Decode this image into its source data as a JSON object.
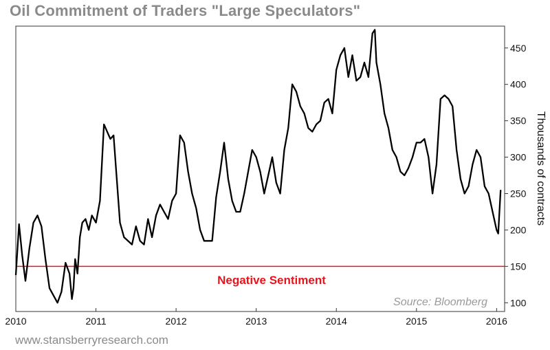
{
  "chart_data": {
    "type": "line",
    "title": "Oil Commitment of Traders \"Large Speculators\"",
    "ylabel": "Thousands of contracts",
    "xlabel": "",
    "xlim": [
      2010,
      2016.1
    ],
    "ylim": [
      88,
      480
    ],
    "x_ticks": [
      "2010",
      "2011",
      "2012",
      "2013",
      "2014",
      "2015",
      "2016"
    ],
    "y_ticks": [
      100,
      150,
      200,
      250,
      300,
      350,
      400,
      450
    ],
    "grid": false,
    "y_axis_side": "right",
    "series": [
      {
        "color": "#000000",
        "x": [
          2010.0,
          2010.04,
          2010.08,
          2010.12,
          2010.17,
          2010.22,
          2010.27,
          2010.32,
          2010.37,
          2010.42,
          2010.47,
          2010.52,
          2010.57,
          2010.62,
          2010.67,
          2010.7,
          2010.72,
          2010.74,
          2010.77,
          2010.8,
          2010.83,
          2010.87,
          2010.91,
          2010.95,
          2011.0,
          2011.05,
          2011.1,
          2011.16,
          2011.18,
          2011.22,
          2011.3,
          2011.35,
          2011.45,
          2011.5,
          2011.55,
          2011.6,
          2011.65,
          2011.7,
          2011.75,
          2011.8,
          2011.85,
          2011.9,
          2011.95,
          2012.0,
          2012.05,
          2012.1,
          2012.15,
          2012.2,
          2012.25,
          2012.3,
          2012.35,
          2012.45,
          2012.5,
          2012.55,
          2012.6,
          2012.65,
          2012.7,
          2012.75,
          2012.8,
          2012.85,
          2012.9,
          2012.95,
          2013.0,
          2013.05,
          2013.1,
          2013.15,
          2013.2,
          2013.25,
          2013.3,
          2013.35,
          2013.4,
          2013.45,
          2013.5,
          2013.55,
          2013.6,
          2013.65,
          2013.7,
          2013.75,
          2013.8,
          2013.85,
          2013.9,
          2013.95,
          2014.0,
          2014.05,
          2014.1,
          2014.15,
          2014.2,
          2014.25,
          2014.3,
          2014.35,
          2014.4,
          2014.45,
          2014.48,
          2014.5,
          2014.55,
          2014.6,
          2014.65,
          2014.7,
          2014.75,
          2014.8,
          2014.85,
          2014.9,
          2014.95,
          2015.0,
          2015.05,
          2015.1,
          2015.15,
          2015.2,
          2015.25,
          2015.3,
          2015.35,
          2015.4,
          2015.45,
          2015.5,
          2015.55,
          2015.6,
          2015.65,
          2015.7,
          2015.75,
          2015.8,
          2015.85,
          2015.9,
          2015.95,
          2016.0,
          2016.02,
          2016.05
        ],
        "y": [
          138,
          208,
          165,
          130,
          175,
          210,
          220,
          205,
          160,
          120,
          110,
          100,
          115,
          155,
          140,
          105,
          120,
          160,
          140,
          190,
          210,
          215,
          200,
          220,
          210,
          240,
          345,
          330,
          325,
          330,
          210,
          190,
          180,
          205,
          185,
          180,
          215,
          190,
          220,
          235,
          225,
          215,
          240,
          250,
          330,
          320,
          280,
          250,
          230,
          200,
          185,
          185,
          245,
          280,
          320,
          270,
          240,
          225,
          225,
          250,
          280,
          310,
          300,
          280,
          250,
          275,
          300,
          265,
          250,
          310,
          340,
          400,
          390,
          370,
          360,
          340,
          335,
          345,
          350,
          375,
          380,
          360,
          420,
          440,
          450,
          410,
          440,
          405,
          410,
          430,
          410,
          470,
          475,
          430,
          400,
          360,
          340,
          310,
          300,
          280,
          275,
          285,
          300,
          320,
          320,
          325,
          300,
          250,
          290,
          380,
          385,
          380,
          370,
          310,
          270,
          250,
          260,
          290,
          310,
          300,
          260,
          250,
          225,
          200,
          195,
          255
        ]
      }
    ],
    "reference_line": {
      "value": 150,
      "color": "#e8141c",
      "label": "Negative Sentiment"
    },
    "annotation": "Source: Bloomberg"
  },
  "footer": "www.stansberryresearch.com"
}
